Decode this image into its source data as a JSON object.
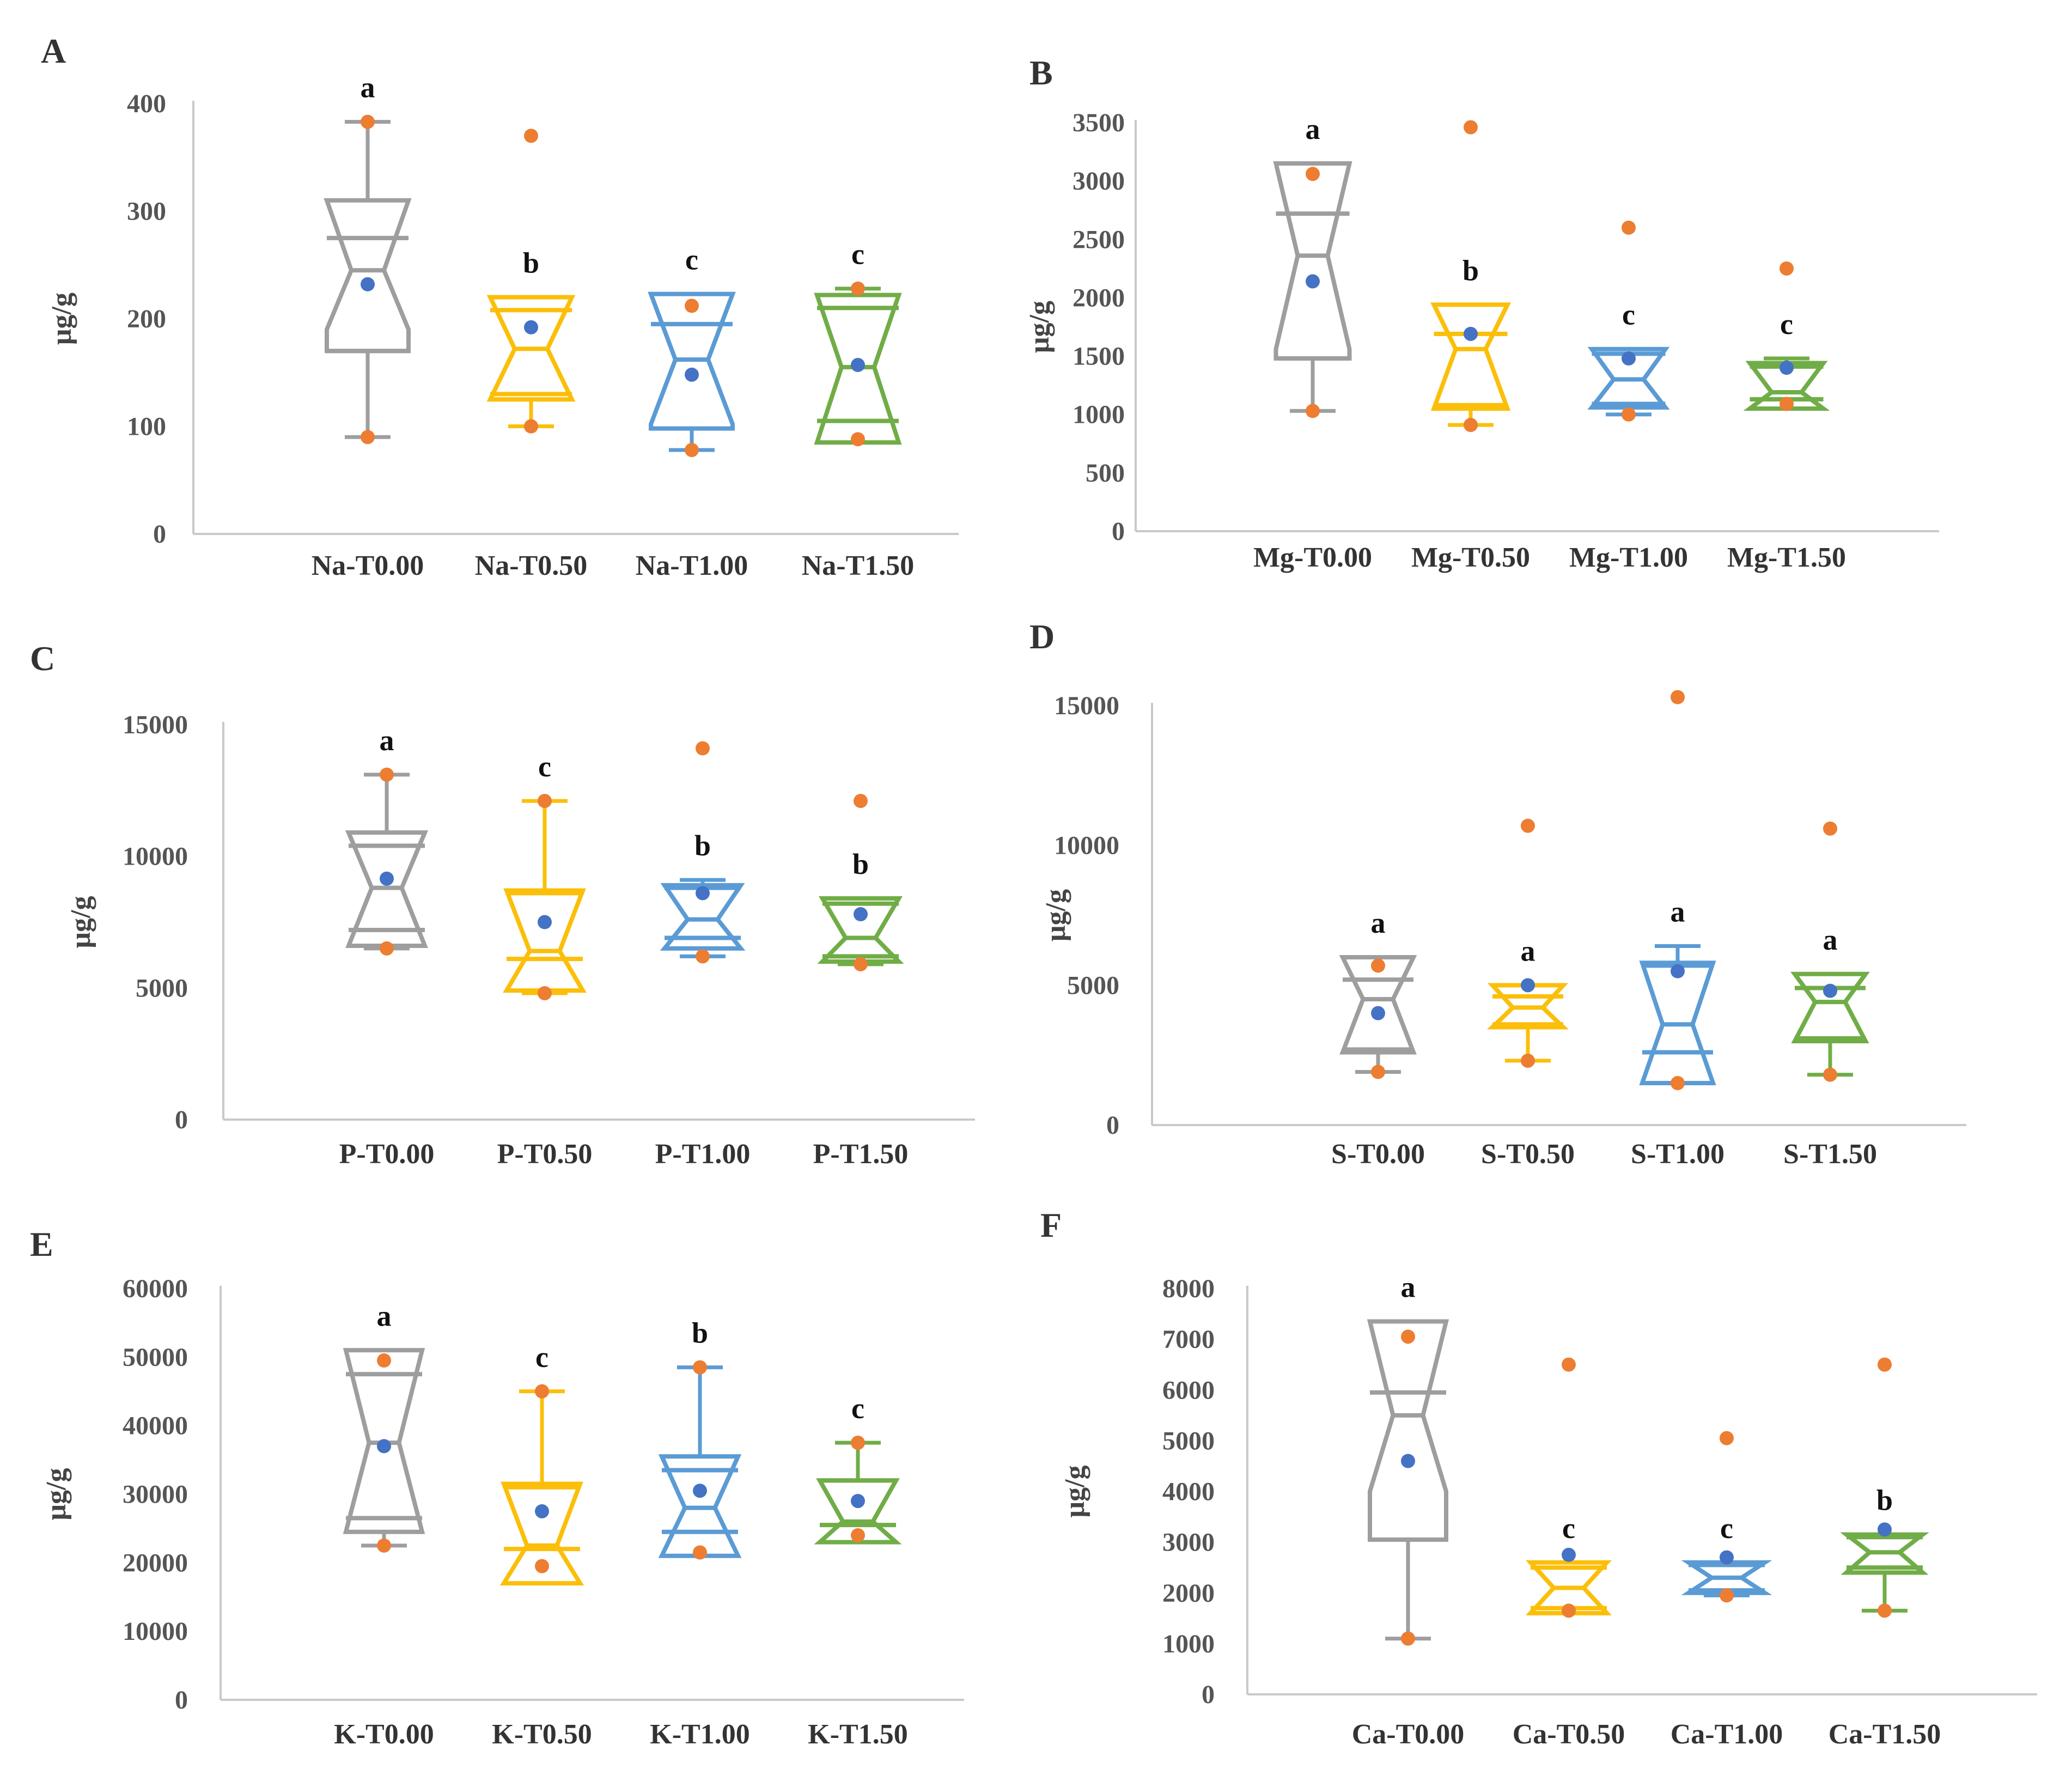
{
  "figure": {
    "colors": {
      "series": [
        "#9e9e9e",
        "#fbbf0a",
        "#5b9bd5",
        "#70ad47"
      ],
      "axis": "#c9c9c9",
      "outlier": "#ed7d31",
      "mean": "#4472c4",
      "text": "#333333"
    }
  },
  "chart_data": [
    {
      "panel": "A",
      "type": "box",
      "ylabel": "μg/g",
      "ylim": [
        0,
        400
      ],
      "yticks": [
        0,
        100,
        200,
        300,
        400
      ],
      "categories": [
        "Na-T0.00",
        "Na-T0.50",
        "Na-T1.00",
        "Na-T1.50"
      ],
      "boxes": [
        {
          "min": 90,
          "q1": 170,
          "median": 245,
          "q3": 275,
          "max": 383,
          "mean": 232,
          "notch": [
            190,
            310
          ],
          "whisker_dots": [
            90,
            383
          ],
          "outliers": [],
          "letter": "a"
        },
        {
          "min": 100,
          "q1": 130,
          "median": 172,
          "q3": 208,
          "max": 210,
          "mean": 192,
          "notch": [
            125,
            220
          ],
          "whisker_dots": [
            100
          ],
          "outliers": [
            370
          ],
          "letter": "b"
        },
        {
          "min": 78,
          "q1": 98,
          "median": 162,
          "q3": 195,
          "max": 212,
          "mean": 148,
          "notch": [
            102,
            223
          ],
          "whisker_dots": [
            78,
            212
          ],
          "outliers": [],
          "letter": "c"
        },
        {
          "min": 88,
          "q1": 105,
          "median": 155,
          "q3": 210,
          "max": 228,
          "mean": 157,
          "notch": [
            85,
            222
          ],
          "whisker_dots": [
            88,
            228
          ],
          "outliers": [],
          "letter": "c"
        }
      ]
    },
    {
      "panel": "B",
      "type": "box",
      "ylabel": "μg/g",
      "ylim": [
        0,
        3500
      ],
      "yticks": [
        0,
        500,
        1000,
        1500,
        2000,
        2500,
        3000,
        3500
      ],
      "categories": [
        "Mg-T0.00",
        "Mg-T0.50",
        "Mg-T1.00",
        "Mg-T1.50"
      ],
      "boxes": [
        {
          "min": 1030,
          "q1": 1480,
          "median": 2360,
          "q3": 2720,
          "max": 3060,
          "mean": 2140,
          "notch": [
            1560,
            3150
          ],
          "whisker_dots": [
            1030,
            3060
          ],
          "outliers": [],
          "letter": "a"
        },
        {
          "min": 910,
          "q1": 1080,
          "median": 1560,
          "q3": 1690,
          "max": 1700,
          "mean": 1690,
          "notch": [
            1050,
            1940
          ],
          "whisker_dots": [
            910
          ],
          "outliers": [
            3460
          ],
          "letter": "b"
        },
        {
          "min": 1000,
          "q1": 1090,
          "median": 1300,
          "q3": 1520,
          "max": 1540,
          "mean": 1480,
          "notch": [
            1060,
            1560
          ],
          "whisker_dots": [
            1000
          ],
          "outliers": [
            2600
          ],
          "letter": "c"
        },
        {
          "min": 1090,
          "q1": 1130,
          "median": 1190,
          "q3": 1410,
          "max": 1480,
          "mean": 1400,
          "notch": [
            1050,
            1440
          ],
          "whisker_dots": [
            1090
          ],
          "outliers": [
            2250
          ],
          "letter": "c"
        }
      ]
    },
    {
      "panel": "C",
      "type": "box",
      "ylabel": "μg/g",
      "ylim": [
        0,
        15000
      ],
      "yticks": [
        0,
        5000,
        10000,
        15000
      ],
      "categories": [
        "P-T0.00",
        "P-T0.50",
        "P-T1.00",
        "P-T1.50"
      ],
      "boxes": [
        {
          "min": 6500,
          "q1": 7200,
          "median": 8800,
          "q3": 10400,
          "max": 13100,
          "mean": 9150,
          "notch": [
            6600,
            10900
          ],
          "whisker_dots": [
            6500,
            13100
          ],
          "outliers": [],
          "letter": "a"
        },
        {
          "min": 4800,
          "q1": 6100,
          "median": 6400,
          "q3": 8600,
          "max": 12100,
          "mean": 7500,
          "notch": [
            4900,
            8700
          ],
          "whisker_dots": [
            4800,
            12100
          ],
          "outliers": [],
          "letter": "c"
        },
        {
          "min": 6200,
          "q1": 6900,
          "median": 7600,
          "q3": 8800,
          "max": 9100,
          "mean": 8600,
          "notch": [
            6500,
            8900
          ],
          "whisker_dots": [
            6200
          ],
          "outliers": [
            14100
          ],
          "letter": "b"
        },
        {
          "min": 5900,
          "q1": 6200,
          "median": 6900,
          "q3": 8200,
          "max": 8400,
          "mean": 7800,
          "notch": [
            6000,
            8400
          ],
          "whisker_dots": [
            5900
          ],
          "outliers": [
            12100
          ],
          "letter": "b"
        }
      ]
    },
    {
      "panel": "D",
      "type": "box",
      "ylabel": "μg/g",
      "ylim": [
        0,
        15000
      ],
      "yticks": [
        0,
        5000,
        10000,
        15000
      ],
      "categories": [
        "S-T0.00",
        "S-T0.50",
        "S-T1.00",
        "S-T1.50"
      ],
      "boxes": [
        {
          "min": 1900,
          "q1": 2700,
          "median": 4500,
          "q3": 5200,
          "max": 5700,
          "mean": 4000,
          "notch": [
            2600,
            6000
          ],
          "whisker_dots": [
            1900,
            5700
          ],
          "outliers": [],
          "letter": "a"
        },
        {
          "min": 2300,
          "q1": 3600,
          "median": 4200,
          "q3": 4600,
          "max": 4900,
          "mean": 5000,
          "notch": [
            3500,
            5000
          ],
          "whisker_dots": [
            2300
          ],
          "outliers": [
            10700
          ],
          "letter": "a"
        },
        {
          "min": 1500,
          "q1": 2600,
          "median": 3600,
          "q3": 5700,
          "max": 6400,
          "mean": 5500,
          "notch": [
            1500,
            5800
          ],
          "whisker_dots": [
            1500
          ],
          "outliers": [
            15300
          ],
          "letter": "a"
        },
        {
          "min": 1800,
          "q1": 3100,
          "median": 4400,
          "q3": 4900,
          "max": 5000,
          "mean": 4800,
          "notch": [
            3000,
            5400
          ],
          "whisker_dots": [
            1800
          ],
          "outliers": [
            10600
          ],
          "letter": "a"
        }
      ]
    },
    {
      "panel": "E",
      "type": "box",
      "ylabel": "μg/g",
      "ylim": [
        0,
        60000
      ],
      "yticks": [
        0,
        10000,
        20000,
        30000,
        40000,
        50000,
        60000
      ],
      "categories": [
        "K-T0.00",
        "K-T0.50",
        "K-T1.00",
        "K-T1.50"
      ],
      "boxes": [
        {
          "min": 22500,
          "q1": 26500,
          "median": 37500,
          "q3": 47500,
          "max": 49500,
          "mean": 37000,
          "notch": [
            24500,
            51000
          ],
          "whisker_dots": [
            22500,
            49500
          ],
          "outliers": [],
          "letter": "a"
        },
        {
          "min": 19500,
          "q1": 22000,
          "median": 22500,
          "q3": 31000,
          "max": 45000,
          "mean": 27500,
          "notch": [
            17000,
            31500
          ],
          "whisker_dots": [
            19500,
            45000
          ],
          "outliers": [],
          "letter": "c"
        },
        {
          "min": 21500,
          "q1": 24500,
          "median": 28000,
          "q3": 33500,
          "max": 48500,
          "mean": 30500,
          "notch": [
            21000,
            35500
          ],
          "whisker_dots": [
            21500,
            48500
          ],
          "outliers": [],
          "letter": "b"
        },
        {
          "min": 24000,
          "q1": 25500,
          "median": 26000,
          "q3": 32000,
          "max": 37500,
          "mean": 29000,
          "notch": [
            23000,
            32000
          ],
          "whisker_dots": [
            24000,
            37500
          ],
          "outliers": [],
          "letter": "c"
        }
      ]
    },
    {
      "panel": "F",
      "type": "box",
      "ylabel": "μg/g",
      "ylim": [
        0,
        8000
      ],
      "yticks": [
        0,
        1000,
        2000,
        3000,
        4000,
        5000,
        6000,
        7000,
        8000
      ],
      "categories": [
        "Ca-T0.00",
        "Ca-T0.50",
        "Ca-T1.00",
        "Ca-T1.50"
      ],
      "boxes": [
        {
          "min": 1100,
          "q1": 3050,
          "median": 5500,
          "q3": 5950,
          "max": 7050,
          "mean": 4600,
          "notch": [
            4000,
            7350
          ],
          "whisker_dots": [
            1100,
            7050
          ],
          "outliers": [],
          "letter": "a"
        },
        {
          "min": 1650,
          "q1": 1700,
          "median": 2100,
          "q3": 2500,
          "max": 2550,
          "mean": 2750,
          "notch": [
            1600,
            2600
          ],
          "whisker_dots": [
            1650
          ],
          "outliers": [
            6500
          ],
          "letter": "c"
        },
        {
          "min": 1950,
          "q1": 2050,
          "median": 2300,
          "q3": 2550,
          "max": 2600,
          "mean": 2700,
          "notch": [
            2000,
            2600
          ],
          "whisker_dots": [
            1950
          ],
          "outliers": [
            5050
          ],
          "letter": "c"
        },
        {
          "min": 1650,
          "q1": 2500,
          "median": 2800,
          "q3": 3100,
          "max": 3150,
          "mean": 3250,
          "notch": [
            2400,
            3150
          ],
          "whisker_dots": [],
          "outliers": [
            6500,
            1650
          ],
          "letter": "b"
        }
      ]
    }
  ]
}
